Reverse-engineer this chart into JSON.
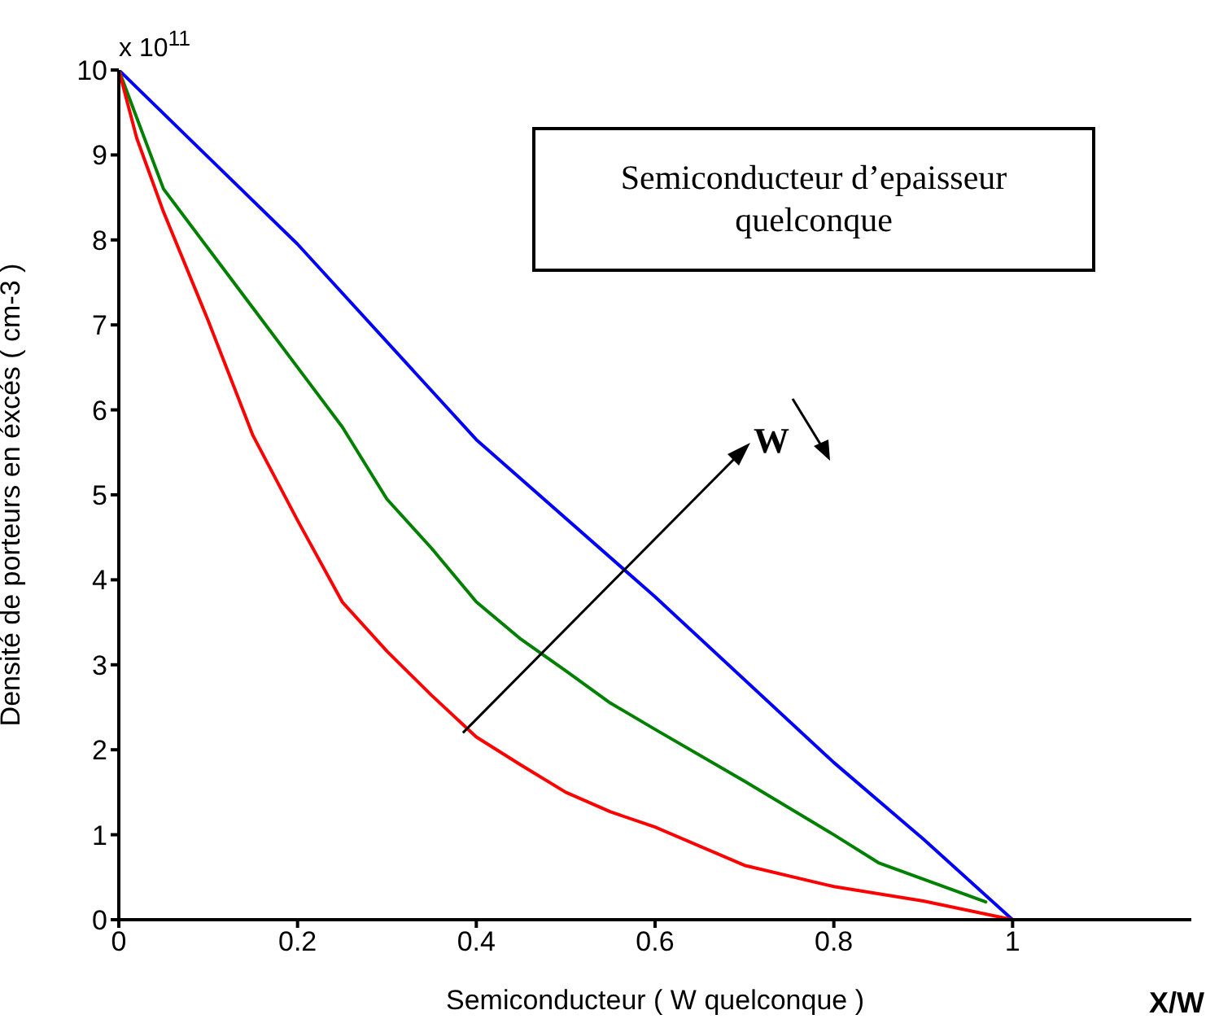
{
  "chart_data": {
    "type": "line",
    "xlabel": "Semiconducteur ( W quelconque  )",
    "ylabel": "Densité de porteurs en éxcés ( cm-3 )",
    "annotations": [
      "Semiconducteur d’epaisseur quelconque",
      {
        "text": "W",
        "x": 0.385,
        "y": 2.2
      },
      "X/W",
      "x 10$^{11}$"
    ],
    "xlim": [
      0,
      1.2
    ],
    "xticks": [
      0,
      0.2,
      0.4,
      0.6,
      0.8,
      1
    ],
    "ylim": [
      0,
      10
    ],
    "yticks": [
      0,
      1,
      2,
      3,
      4,
      5,
      6,
      7,
      8,
      9,
      10
    ],
    "grid": false,
    "legend": false,
    "marker": "none",
    "line_style": "solid",
    "series": [
      {
        "color": "#0000ff",
        "x": [
          0,
          0.2,
          0.4,
          0.6,
          0.8,
          0.9,
          1
        ],
        "values": [
          10,
          7.95,
          5.65,
          3.8,
          1.85,
          0.95,
          0
        ]
      },
      {
        "color": "#008000",
        "x": [
          0,
          0.05,
          0.1,
          0.15,
          0.2,
          0.25,
          0.3,
          0.35,
          0.4,
          0.45,
          0.5,
          0.55,
          0.6,
          0.7,
          0.8,
          0.85,
          0.97
        ],
        "values": [
          10,
          8.6,
          7.9,
          7.2,
          6.5,
          5.8,
          4.95,
          4.37,
          3.74,
          3.3,
          2.93,
          2.55,
          2.24,
          1.63,
          1.0,
          0.67,
          0.21
        ]
      },
      {
        "color": "#ff0000",
        "x": [
          0,
          0.02,
          0.05,
          0.1,
          0.15,
          0.2,
          0.25,
          0.3,
          0.35,
          0.4,
          0.45,
          0.5,
          0.55,
          0.6,
          0.7,
          0.8,
          0.9,
          1
        ],
        "values": [
          10,
          9.2,
          8.33,
          7.05,
          5.7,
          4.7,
          3.74,
          3.16,
          2.64,
          2.15,
          1.82,
          1.5,
          1.27,
          1.09,
          0.64,
          0.39,
          0.22,
          0
        ]
      }
    ]
  }
}
